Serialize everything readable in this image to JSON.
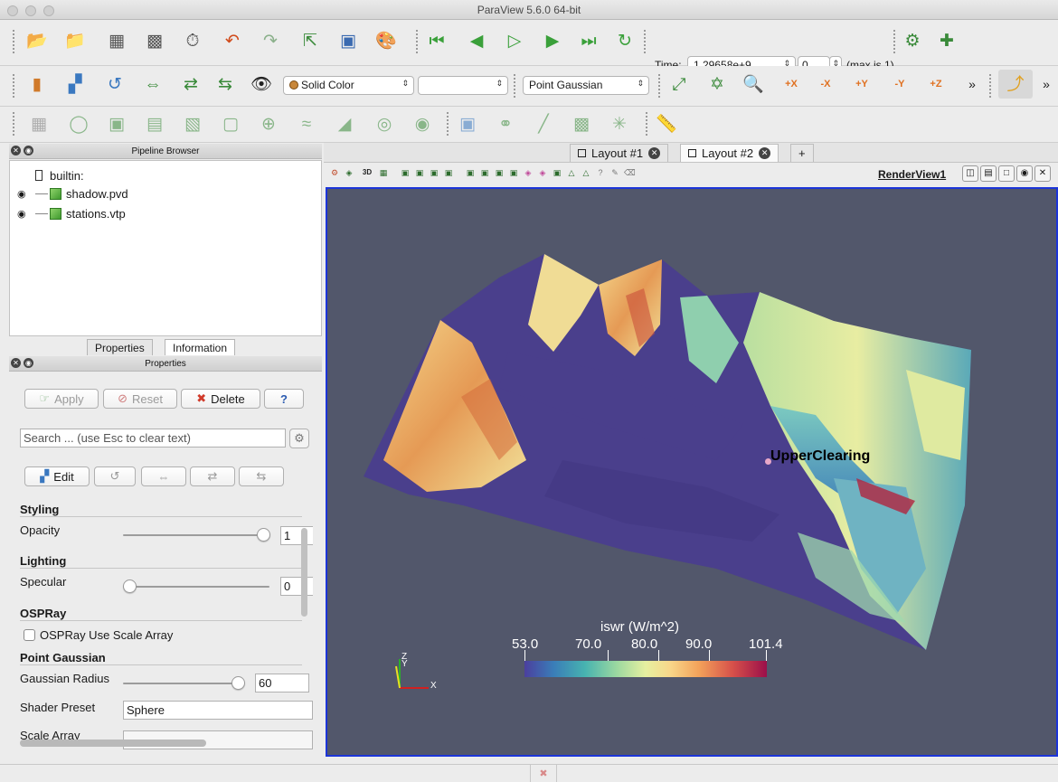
{
  "window": {
    "title": "ParaView 5.6.0 64-bit"
  },
  "toolbar": {
    "time_label": "Time:",
    "time_value": "1.29658e+9",
    "timestep_value": "0",
    "timestep_max": "(max is 1)",
    "color_by": "Solid Color",
    "component": "",
    "representation": "Point Gaussian",
    "camera_labels": {
      "px": "+X",
      "mx": "-X",
      "py": "+Y",
      "my": "-Y",
      "pz": "+Z"
    },
    "more": "»"
  },
  "pipeline": {
    "header": "Pipeline Browser",
    "root": "builtin:",
    "items": [
      {
        "label": "shadow.pvd",
        "visible": true
      },
      {
        "label": "stations.vtp",
        "visible": true
      }
    ]
  },
  "properties": {
    "tabs": [
      "Properties",
      "Information"
    ],
    "header": "Properties",
    "apply": "Apply",
    "reset": "Reset",
    "delete": "Delete",
    "help": "?",
    "search_placeholder": "Search ... (use Esc to clear text)",
    "edit": "Edit",
    "sections": {
      "styling": "Styling",
      "lighting": "Lighting",
      "ospray": "OSPRay",
      "point_gaussian": "Point Gaussian"
    },
    "opacity": {
      "label": "Opacity",
      "value": "1",
      "level": 1.0
    },
    "specular": {
      "label": "Specular",
      "value": "0",
      "level": 0.0
    },
    "ospray_scale": {
      "label": "OSPRay Use Scale Array",
      "checked": false
    },
    "gaussian_radius": {
      "label": "Gaussian Radius",
      "value": "60",
      "level": 0.85
    },
    "shader_preset": {
      "label": "Shader Preset",
      "value": "Sphere"
    },
    "scale_array": {
      "label": "Scale Array"
    }
  },
  "layouts": {
    "tabs": [
      "Layout #1",
      "Layout #2"
    ],
    "active": "Layout #2",
    "add": "+"
  },
  "render_view": {
    "name": "RenderView1",
    "view_toolbar_3d": "3D",
    "station_label": "UpperClearing",
    "axes": {
      "z": "Z",
      "y": "Y",
      "x": "X"
    },
    "colorbar": {
      "title": "iswr (W/m^2)",
      "min": "53.0",
      "ticks": [
        "70.0",
        "80.0",
        "90.0"
      ],
      "max": "101.4",
      "colors": [
        "#4b3f9e",
        "#47b3b0",
        "#e6f0a0",
        "#f3a25a",
        "#9b0f4a"
      ]
    },
    "background": "#52576b",
    "border_color": "#1c35d8"
  },
  "statusbar": {
    "icon": "error-close-icon"
  }
}
